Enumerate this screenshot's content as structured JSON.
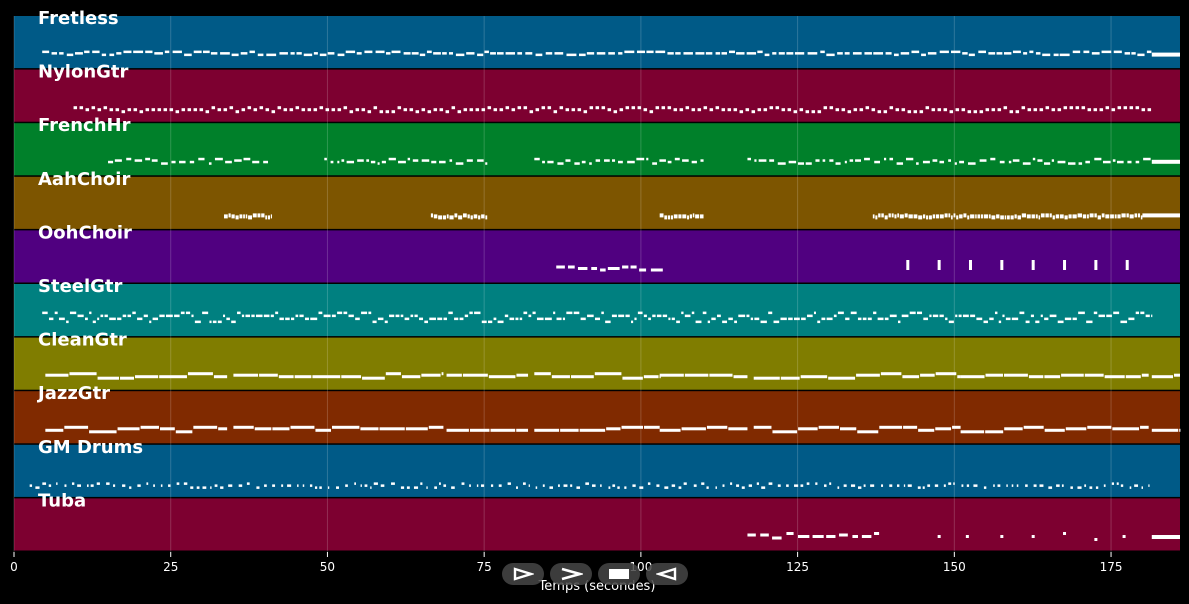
{
  "chart_data": {
    "type": "piano-roll",
    "title": "",
    "xlabel": "Temps (secondes)",
    "xlim": [
      0,
      186
    ],
    "xticks": [
      0,
      25,
      50,
      75,
      100,
      125,
      150,
      175
    ],
    "grid": true,
    "background": "#000000",
    "note_color": "#ffffff",
    "tracks": [
      {
        "name": "Fretless",
        "color": "#005a87",
        "segments": [
          [
            4.5,
            181.5
          ]
        ],
        "style": "bass",
        "tail": [
          181.5,
          186
        ]
      },
      {
        "name": "NylonGtr",
        "color": "#7d0030",
        "segments": [
          [
            9.5,
            181.5
          ]
        ],
        "style": "dotted"
      },
      {
        "name": "FrenchHr",
        "color": "#00802a",
        "segments": [
          [
            15,
            41
          ],
          [
            49.5,
            75.5
          ],
          [
            83,
            110
          ],
          [
            117,
            181.5
          ]
        ],
        "style": "melody",
        "tail": [
          181.5,
          186
        ]
      },
      {
        "name": "AahChoir",
        "color": "#7d5500",
        "segments": [
          [
            33.5,
            41
          ],
          [
            66.5,
            75.5
          ],
          [
            103,
            110
          ],
          [
            137,
            180
          ]
        ],
        "style": "block",
        "tail": [
          180,
          186
        ]
      },
      {
        "name": "OohChoir",
        "color": "#500080",
        "segments": [
          [
            86.5,
            103.5
          ]
        ],
        "style": "short",
        "hits": [
          142.5,
          147.5,
          152.5,
          157.5,
          162.5,
          167.5,
          172.5,
          177.5
        ]
      },
      {
        "name": "SteelGtr",
        "color": "#008080",
        "segments": [
          [
            4.5,
            181.5
          ]
        ],
        "style": "strum"
      },
      {
        "name": "CleanGtr",
        "color": "#807d00",
        "segments": [
          [
            5,
            34
          ],
          [
            35,
            68.5
          ],
          [
            69,
            82
          ],
          [
            83,
            103
          ],
          [
            103,
            117
          ],
          [
            118,
            151
          ],
          [
            151,
            181
          ],
          [
            181.5,
            186
          ]
        ],
        "style": "long"
      },
      {
        "name": "JazzGtr",
        "color": "#802a00",
        "segments": [
          [
            5,
            34
          ],
          [
            35,
            68.5
          ],
          [
            69,
            82
          ],
          [
            83,
            103
          ],
          [
            103,
            117
          ],
          [
            118,
            151
          ],
          [
            151,
            181
          ],
          [
            181.5,
            186
          ]
        ],
        "style": "long"
      },
      {
        "name": "GM Drums",
        "color": "#005a87",
        "segments": [
          [
            2.5,
            181
          ]
        ],
        "style": "drums"
      },
      {
        "name": "Tuba",
        "color": "#7d0030",
        "segments": [
          [
            117,
            138
          ]
        ],
        "style": "short",
        "hits": [
          147.5,
          152,
          157.5,
          162.5,
          167.5,
          172.5,
          177
        ],
        "tail": [
          181.5,
          186
        ]
      }
    ]
  },
  "controls": {
    "play_icon": "play-icon",
    "forward_icon": "fast-forward-icon",
    "stop_icon": "stop-icon",
    "rewind_icon": "rewind-icon"
  }
}
